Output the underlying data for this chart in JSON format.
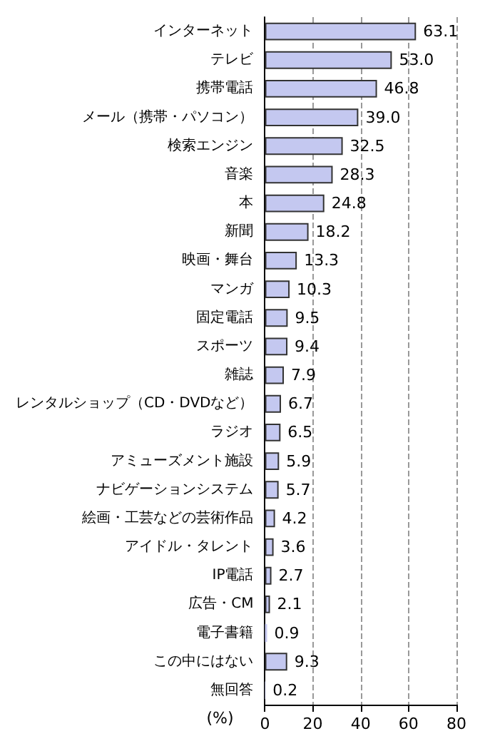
{
  "chart_data": {
    "type": "bar",
    "orientation": "horizontal",
    "xlabel": "(%)",
    "categories": [
      "インターネット",
      "テレビ",
      "携帯電話",
      "メール（携帯・パソコン）",
      "検索エンジン",
      "音楽",
      "本",
      "新聞",
      "映画・舞台",
      "マンガ",
      "固定電話",
      "スポーツ",
      "雑誌",
      "レンタルショップ（CD・DVDなど）",
      "ラジオ",
      "アミューズメント施設",
      "ナビゲーションシステム",
      "絵画・工芸などの芸術作品",
      "アイドル・タレント",
      "IP電話",
      "広告・CM",
      "電子書籍",
      "この中にはない",
      "無回答"
    ],
    "values": [
      63.1,
      53.0,
      46.8,
      39.0,
      32.5,
      28.3,
      24.8,
      18.2,
      13.3,
      10.3,
      9.5,
      9.4,
      7.9,
      6.7,
      6.5,
      5.9,
      5.7,
      4.2,
      3.6,
      2.7,
      2.1,
      0.9,
      9.3,
      0.2
    ],
    "value_labels": [
      "63.1",
      "53.0",
      "46.8",
      "39.0",
      "32.5",
      "28.3",
      "24.8",
      "18.2",
      "13.3",
      "10.3",
      "9.5",
      "9.4",
      "7.9",
      "6.7",
      "6.5",
      "5.9",
      "5.7",
      "4.2",
      "3.6",
      "2.7",
      "2.1",
      "0.9",
      "9.3",
      "0.2"
    ],
    "color": "#c4c8f0",
    "xlim": [
      0,
      80
    ],
    "xticks": [
      0,
      20,
      40,
      60,
      80
    ],
    "grid": "x"
  }
}
